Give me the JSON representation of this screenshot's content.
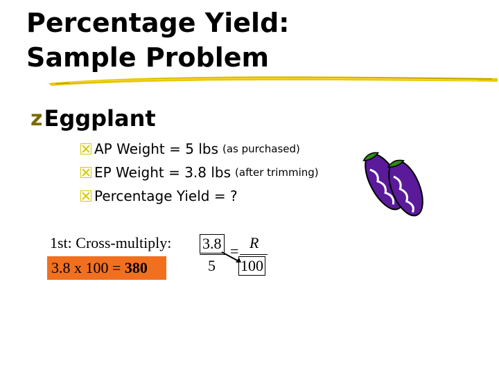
{
  "title": {
    "line1": "Percentage Yield:",
    "line2": "Sample Problem"
  },
  "bullet": {
    "marker": "z",
    "heading": "Eggplant"
  },
  "sub_bullets": [
    {
      "marker": "x",
      "main": "AP Weight = 5 lbs",
      "note": "(as purchased)"
    },
    {
      "marker": "x",
      "main": "EP Weight = 3.8 lbs",
      "note": "(after trimming)"
    },
    {
      "marker": "x",
      "main": "Percentage Yield = ?",
      "note": ""
    }
  ],
  "step": "1st: Cross-multiply:",
  "result": {
    "expression": "3.8 x 100 = ",
    "answer": "380",
    "highlight": "#f07020"
  },
  "fraction_left": {
    "numerator": "3.8",
    "denominator": "5"
  },
  "equals": "=",
  "fraction_right": {
    "numerator": "R",
    "denominator": "100"
  },
  "colors": {
    "bullet_z": "#7a6a00",
    "bullet_x": "#d4c800",
    "eggplant": "#5a1a9a",
    "stem": "#2f8a1a"
  },
  "icons": [
    "z-bullet-glyph",
    "x-box-icon",
    "eggplant-icon",
    "swoosh-underline"
  ]
}
